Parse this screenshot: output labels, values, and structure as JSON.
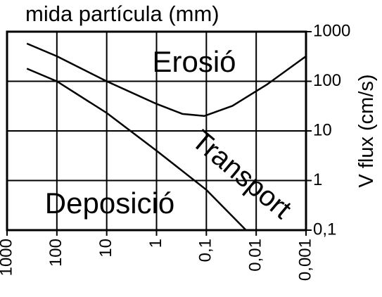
{
  "chart_data": {
    "type": "line",
    "title": "mida partícula (mm)",
    "y_label": "V flux (cm/s)",
    "annotations": [
      "Erosió",
      "Transport",
      "Deposició"
    ],
    "xscale": "log",
    "yscale": "log",
    "x_reversed": true,
    "y_axis_side": "right",
    "grid": true,
    "xlim": [
      1000,
      0.001
    ],
    "ylim": [
      0.1,
      1000
    ],
    "xticks": [
      1000,
      100,
      10,
      1,
      {
        "value": 0.1,
        "label": "0,1"
      },
      {
        "value": 0.01,
        "label": "0,01"
      },
      {
        "value": 0.001,
        "label": "0,001"
      }
    ],
    "yticks": [
      {
        "value": 0.1,
        "label": "0,1"
      },
      1,
      10,
      100,
      1000
    ],
    "series": [
      {
        "color": "#000000",
        "x": [
          400,
          100,
          10,
          1,
          0.3,
          0.11,
          0.03,
          0.006,
          0.001
        ],
        "values": [
          575,
          320,
          100,
          35,
          22,
          20,
          32,
          87,
          320
        ]
      },
      {
        "color": "#000000",
        "x": [
          400,
          100,
          10,
          1,
          0.1,
          0.016
        ],
        "values": [
          180,
          100,
          23,
          4,
          0.65,
          0.1
        ]
      }
    ]
  }
}
